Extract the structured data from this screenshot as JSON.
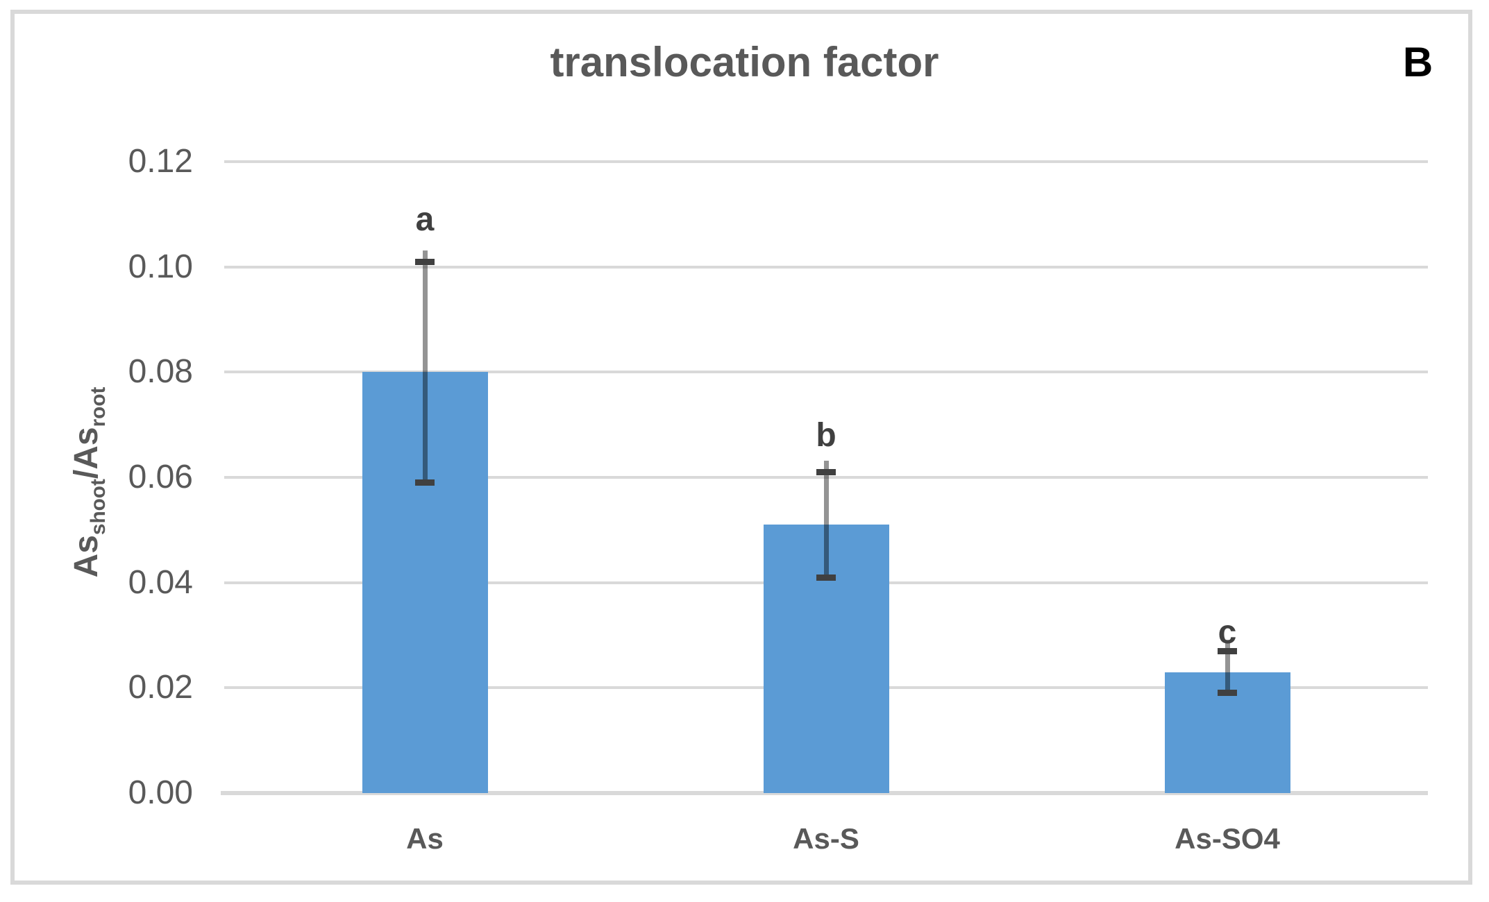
{
  "figure": {
    "title": "translocation factor",
    "panel_label": "B"
  },
  "chart_data": {
    "type": "bar",
    "title": "translocation factor",
    "panel_label": "B",
    "categories": [
      "As",
      "As-S",
      "As-SO4"
    ],
    "values": [
      0.08,
      0.051,
      0.023
    ],
    "error_low": [
      0.059,
      0.041,
      0.019
    ],
    "error_high": [
      0.101,
      0.061,
      0.027
    ],
    "sig_letters": [
      "a",
      "b",
      "c"
    ],
    "ylabel": "As_shoot/As_root",
    "ylabel_parts": {
      "base1": "As",
      "sub1": "shoot",
      "base2": "/As",
      "sub2": "root"
    },
    "xlabel": "",
    "ylim": [
      0,
      0.12
    ],
    "ytick_step": 0.02,
    "ytick_labels": [
      "0.00",
      "0.02",
      "0.04",
      "0.06",
      "0.08",
      "0.10",
      "0.12"
    ],
    "grid": true,
    "legend": false,
    "colors": {
      "bar": "#5b9bd5",
      "gridline": "#d9d9d9",
      "axis_text": "#595959",
      "title_text": "#595959",
      "significance_letters": "#404040",
      "error_bar_caps": "#404040",
      "panel_label": "#000000",
      "frame_border": "#d9d9d9",
      "background": "#ffffff"
    }
  }
}
